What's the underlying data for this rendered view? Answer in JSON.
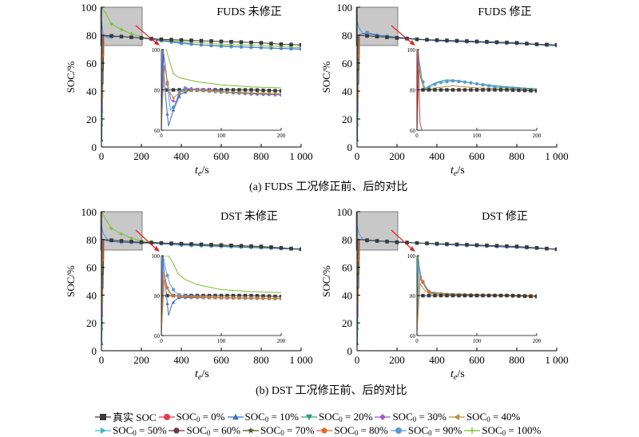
{
  "charts": [
    {
      "title": "FUDS 未修正",
      "kind": "fuds_raw"
    },
    {
      "title": "FUDS 修正",
      "kind": "fuds_cor"
    },
    {
      "title": "DST 未修正",
      "kind": "dst_raw"
    },
    {
      "title": "DST 修正",
      "kind": "dst_cor"
    }
  ],
  "captions": {
    "a": "(a) FUDS 工况修正前、后的对比",
    "b": "(b) DST 工况修正前、后的对比"
  },
  "axes": {
    "ylabel": "SOC/%",
    "xlabel_main": "t",
    "xlabel_sub": "e",
    "xlabel_unit": "/s",
    "xticks": [
      "0",
      "200",
      "400",
      "600",
      "800",
      "1 000"
    ],
    "yticks": [
      "0",
      "20",
      "40",
      "60",
      "80",
      "100"
    ],
    "inset_xticks": [
      "0",
      "100",
      "200"
    ],
    "inset_yticks": [
      "60",
      "80",
      "100"
    ]
  },
  "legend": [
    {
      "pre": "真实 SOC",
      "sub": "",
      "post": "",
      "color": "#3a3a3a",
      "marker": "square"
    },
    {
      "pre": "SOC",
      "sub": "0",
      "post": " = 0%",
      "color": "#e8374f",
      "marker": "circle"
    },
    {
      "pre": "SOC",
      "sub": "0",
      "post": " = 10%",
      "color": "#3a6fc4",
      "marker": "triangle"
    },
    {
      "pre": "SOC",
      "sub": "0",
      "post": " = 20%",
      "color": "#2f9e72",
      "marker": "tri-down"
    },
    {
      "pre": "SOC",
      "sub": "0",
      "post": " = 30%",
      "color": "#9b62c8",
      "marker": "diamond"
    },
    {
      "pre": "SOC",
      "sub": "0",
      "post": " = 40%",
      "color": "#b8913a",
      "marker": "tri-left"
    },
    {
      "pre": "SOC",
      "sub": "0",
      "post": " = 50%",
      "color": "#3fbcc8",
      "marker": "tri-right"
    },
    {
      "pre": "SOC",
      "sub": "0",
      "post": " = 60%",
      "color": "#6a3a4a",
      "marker": "hexagon"
    },
    {
      "pre": "SOC",
      "sub": "0",
      "post": " = 70%",
      "color": "#4e5a1e",
      "marker": "star"
    },
    {
      "pre": "SOC",
      "sub": "0",
      "post": " = 80%",
      "color": "#e8642a",
      "marker": "pentagon"
    },
    {
      "pre": "SOC",
      "sub": "0",
      "post": " = 90%",
      "color": "#5b9bd5",
      "marker": "circle"
    },
    {
      "pre": "SOC",
      "sub": "0",
      "post": " = 100%",
      "color": "#7cbf2c",
      "marker": "plus"
    }
  ],
  "chart_data": [
    {
      "type": "line",
      "title": "FUDS 未修正",
      "xlabel": "te/s",
      "ylabel": "SOC/%",
      "xlim": [
        0,
        1000
      ],
      "ylim": [
        0,
        100
      ],
      "series": [
        {
          "name": "真实 SOC",
          "x": [
            0,
            100,
            200,
            300,
            400,
            500,
            600,
            700,
            800,
            900,
            1000
          ],
          "y": [
            80,
            79,
            78,
            77,
            76.5,
            76,
            75.5,
            75,
            74.5,
            73.5,
            73
          ]
        },
        {
          "name": "SOC0 = 100%",
          "x": [
            0,
            20,
            50,
            100,
            150,
            200,
            250,
            300,
            400,
            500,
            600,
            800,
            1000
          ],
          "y": [
            100,
            96,
            88,
            84,
            81,
            79,
            77,
            76.5,
            75.5,
            74.5,
            73.5,
            72.5,
            71
          ]
        },
        {
          "name": "SOC0 = 10%",
          "x": [
            0,
            10,
            30,
            50,
            100,
            200,
            300,
            400,
            500,
            600,
            800,
            1000
          ],
          "y": [
            10,
            80,
            78,
            79,
            80,
            78,
            76,
            74,
            73,
            72,
            71,
            70
          ]
        }
      ],
      "inset": {
        "xlim": [
          0,
          200
        ],
        "ylim": [
          60,
          100
        ]
      }
    },
    {
      "type": "line",
      "title": "FUDS 修正",
      "xlabel": "te/s",
      "ylabel": "SOC/%",
      "xlim": [
        0,
        1000
      ],
      "ylim": [
        0,
        100
      ],
      "series": [
        {
          "name": "真实 SOC",
          "x": [
            0,
            100,
            200,
            300,
            400,
            500,
            600,
            700,
            800,
            900,
            1000
          ],
          "y": [
            80,
            79,
            78,
            77,
            76.5,
            76,
            75.5,
            75,
            74.5,
            73.5,
            73
          ]
        },
        {
          "name": "SOC0 = 90%",
          "x": [
            0,
            10,
            30,
            50,
            100,
            200,
            300,
            400,
            500,
            600,
            800,
            1000
          ],
          "y": [
            90,
            85,
            81,
            82,
            80,
            78.5,
            77,
            76,
            75.5,
            75,
            74,
            72.5
          ]
        }
      ],
      "inset": {
        "xlim": [
          0,
          200
        ],
        "ylim": [
          60,
          100
        ]
      }
    },
    {
      "type": "line",
      "title": "DST 未修正",
      "xlabel": "te/s",
      "ylabel": "SOC/%",
      "xlim": [
        0,
        1000
      ],
      "ylim": [
        0,
        100
      ],
      "series": [
        {
          "name": "真实 SOC",
          "x": [
            0,
            100,
            200,
            300,
            400,
            500,
            600,
            700,
            800,
            900,
            1000
          ],
          "y": [
            80,
            79,
            78,
            77.5,
            77,
            76.5,
            76,
            75.5,
            75,
            74,
            73
          ]
        },
        {
          "name": "SOC0 = 100%",
          "x": [
            0,
            20,
            50,
            100,
            150,
            200,
            300,
            400,
            600,
            800,
            1000
          ],
          "y": [
            100,
            95,
            88,
            84,
            81,
            79,
            77.5,
            76.5,
            75.5,
            74.5,
            73
          ]
        },
        {
          "name": "SOC0 = 90%",
          "x": [
            0,
            10,
            30,
            50,
            100,
            200,
            300,
            400,
            600,
            800,
            1000
          ],
          "y": [
            90,
            84,
            80,
            79,
            78,
            78,
            77,
            76,
            75,
            74,
            73
          ]
        }
      ],
      "inset": {
        "xlim": [
          0,
          200
        ],
        "ylim": [
          60,
          100
        ]
      }
    },
    {
      "type": "line",
      "title": "DST 修正",
      "xlabel": "te/s",
      "ylabel": "SOC/%",
      "xlim": [
        0,
        1000
      ],
      "ylim": [
        0,
        100
      ],
      "series": [
        {
          "name": "真实 SOC",
          "x": [
            0,
            100,
            200,
            300,
            400,
            500,
            600,
            700,
            800,
            900,
            1000
          ],
          "y": [
            80,
            79,
            78,
            77.5,
            77,
            76.5,
            76,
            75.5,
            75,
            74,
            73
          ]
        },
        {
          "name": "SOC0 = 90%",
          "x": [
            0,
            10,
            30,
            50,
            100,
            200,
            300,
            400,
            600,
            800,
            1000
          ],
          "y": [
            90,
            84,
            80,
            79,
            79,
            78.5,
            77.5,
            76.5,
            75.5,
            74.5,
            73
          ]
        }
      ],
      "inset": {
        "xlim": [
          0,
          200
        ],
        "ylim": [
          60,
          100
        ]
      }
    }
  ]
}
